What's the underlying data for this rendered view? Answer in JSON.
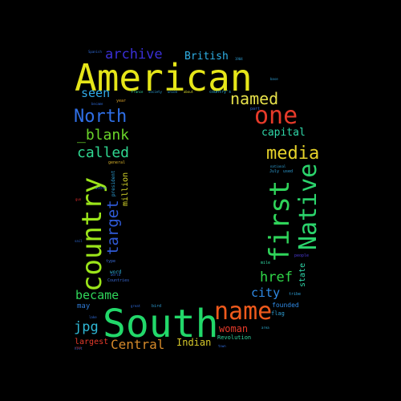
{
  "words": [
    {
      "text": "American",
      "color": "#e6e619"
    },
    {
      "text": "South",
      "color": "#22d86a"
    },
    {
      "text": "country",
      "color": "#9be51a"
    },
    {
      "text": "first",
      "color": "#2fd45a"
    },
    {
      "text": "Native",
      "color": "#2bd46c"
    },
    {
      "text": "name",
      "color": "#ef5a1c"
    },
    {
      "text": "one",
      "color": "#e63a2a"
    },
    {
      "text": "North",
      "color": "#2f6fe6"
    },
    {
      "text": "media",
      "color": "#e6d22a"
    },
    {
      "text": "named",
      "color": "#e6e04a"
    },
    {
      "text": "archive",
      "color": "#3a2fd6"
    },
    {
      "text": "_blank",
      "color": "#6ad42a"
    },
    {
      "text": "called",
      "color": "#2fd690"
    },
    {
      "text": "target",
      "color": "#2f5ad6"
    },
    {
      "text": "href",
      "color": "#2fd648"
    },
    {
      "text": "city",
      "color": "#2f8ae6"
    },
    {
      "text": "became",
      "color": "#2fd65a"
    },
    {
      "text": "jpg",
      "color": "#2fb8d6"
    },
    {
      "text": "Central",
      "color": "#d68a2a"
    },
    {
      "text": "seen",
      "color": "#2fa8e6"
    },
    {
      "text": "British",
      "color": "#2fb0e6"
    },
    {
      "text": "capital",
      "color": "#2fd6a8"
    },
    {
      "text": "woman",
      "color": "#e63a2a"
    },
    {
      "text": "Indian",
      "color": "#d6c82a"
    },
    {
      "text": "million",
      "color": "#d6d62a"
    },
    {
      "text": "largest",
      "color": "#e63a2a"
    },
    {
      "text": "state",
      "color": "#2fd6a8"
    },
    {
      "text": "founded",
      "color": "#2f8ae6"
    },
    {
      "text": "flag",
      "color": "#2fa0d6"
    },
    {
      "text": "Revolution",
      "color": "#2fd6a0"
    },
    {
      "text": "may",
      "color": "#2f7ad6"
    },
    {
      "text": "word",
      "color": "#2fb0d6"
    },
    {
      "text": "president",
      "color": "#2fa0d6"
    },
    {
      "text": "general",
      "color": "#d6b02a"
    },
    {
      "text": "people",
      "color": "#4a3ad6"
    },
    {
      "text": "country's",
      "color": "#2fb0d6"
    },
    {
      "text": "used",
      "color": "#2fa0d6"
    },
    {
      "text": "tribe",
      "color": "#2fa0d6"
    },
    {
      "text": "mile",
      "color": "#2fd6a0"
    },
    {
      "text": "July",
      "color": "#2fa0d6"
    },
    {
      "text": "Countries",
      "color": "#3a6ad6"
    },
    {
      "text": "type",
      "color": "#3a6ad6"
    },
    {
      "text": "bird",
      "color": "#2fa0d6"
    },
    {
      "text": "part",
      "color": "#2f6ad6"
    },
    {
      "text": "national",
      "color": "#2fa0d6"
    },
    {
      "text": "year",
      "color": "#d6a02a"
    },
    {
      "text": "author",
      "color": "#2f6ad6"
    },
    {
      "text": "world",
      "color": "#2f6ad6"
    },
    {
      "text": "society",
      "color": "#2fa0d6"
    },
    {
      "text": "France",
      "color": "#2fd6a0"
    },
    {
      "text": "area",
      "color": "#2fb0d6"
    },
    {
      "text": "great",
      "color": "#2f6ad6"
    },
    {
      "text": "about",
      "color": "#d6d62a"
    },
    {
      "text": "1904",
      "color": "#2fa0d6"
    },
    {
      "text": "union",
      "color": "#2fa0d6"
    },
    {
      "text": "base",
      "color": "#2fa0d6"
    },
    {
      "text": "Spanish",
      "color": "#2f6ad6"
    },
    {
      "text": "became",
      "color": "#2f6ad6"
    },
    {
      "text": "town",
      "color": "#2f6ad6"
    },
    {
      "text": "hist",
      "color": "#2f6ad6"
    },
    {
      "text": "lake",
      "color": "#2f6ad6"
    },
    {
      "text": "sail",
      "color": "#2f6ad6"
    },
    {
      "text": "gun",
      "color": "#d62a2a"
    },
    {
      "text": "rei",
      "color": "#d62a2a"
    }
  ]
}
